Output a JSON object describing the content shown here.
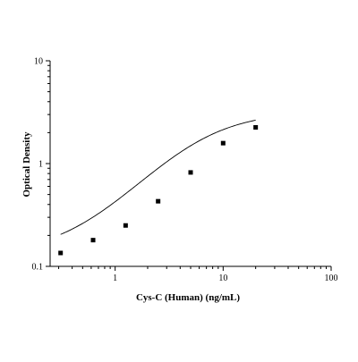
{
  "chart_data": {
    "type": "scatter",
    "title": "",
    "xlabel": "Cys-C (Human) (ng/mL)",
    "ylabel": "Optical Density",
    "x_scale": "log",
    "y_scale": "log",
    "xlim": [
      0.25,
      100
    ],
    "ylim": [
      0.1,
      10
    ],
    "x_ticks": [
      {
        "value": 1,
        "label": "1"
      },
      {
        "value": 10,
        "label": "10"
      },
      {
        "value": 100,
        "label": "100"
      }
    ],
    "y_ticks": [
      {
        "value": 0.1,
        "label": "0.1"
      },
      {
        "value": 1,
        "label": "1"
      },
      {
        "value": 10,
        "label": "10"
      }
    ],
    "grid": false,
    "legend": "none",
    "marker_color": "#000000",
    "series": [
      {
        "x": [
          0.3125,
          0.625,
          1.25,
          2.5,
          5,
          10,
          20
        ],
        "y": [
          0.135,
          0.18,
          0.25,
          0.43,
          0.82,
          1.58,
          2.25
        ]
      }
    ],
    "fit_curve": {
      "model": "4PL",
      "A": 0.13,
      "D": 3.2,
      "C": 6.0,
      "B": 1.25,
      "x_range": [
        0.3125,
        20
      ]
    }
  }
}
